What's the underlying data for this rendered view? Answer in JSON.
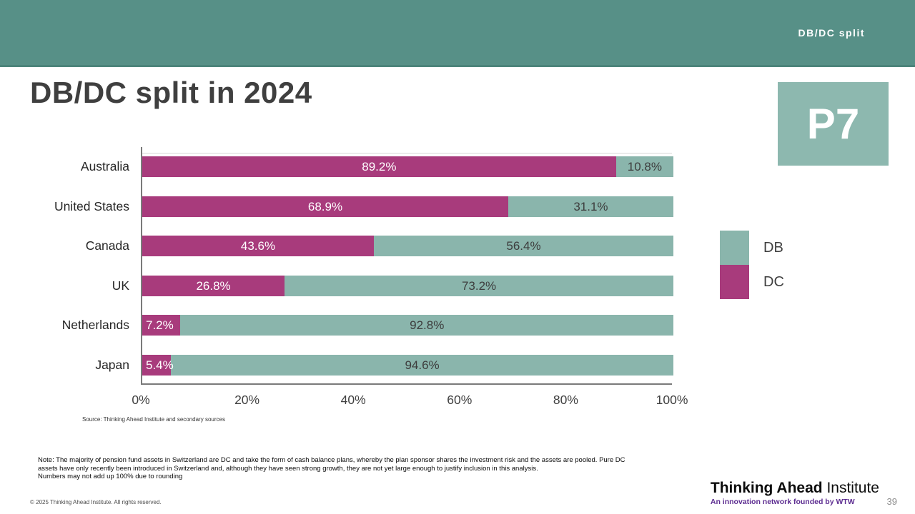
{
  "header": {
    "label": "DB/DC split"
  },
  "page": {
    "title": "DB/DC split in 2024",
    "badge": "P7",
    "page_number": "39"
  },
  "chart_data": {
    "type": "bar",
    "orientation": "horizontal",
    "stacked": true,
    "title": "DB/DC split in 2024",
    "categories": [
      "Australia",
      "United States",
      "Canada",
      "UK",
      "Netherlands",
      "Japan"
    ],
    "series": [
      {
        "name": "DC",
        "color": "#a83b7c",
        "label_color": "#ffffff",
        "values": [
          89.2,
          68.9,
          43.6,
          26.8,
          7.2,
          5.4
        ]
      },
      {
        "name": "DB",
        "color": "#8ab5ac",
        "label_color": "#3d3d3d",
        "values": [
          10.8,
          31.1,
          56.4,
          73.2,
          92.8,
          94.6
        ]
      }
    ],
    "x_ticks": [
      "0%",
      "20%",
      "40%",
      "60%",
      "80%",
      "100%"
    ],
    "xlim": [
      0,
      100
    ],
    "grid": false,
    "legend_position": "right",
    "legend": [
      {
        "label": "DB",
        "color": "#8ab5ac"
      },
      {
        "label": "DC",
        "color": "#a83b7c"
      }
    ],
    "source": "Source: Thinking Ahead Institute and secondary sources"
  },
  "note": {
    "lines": [
      "Note: The majority of pension fund assets in Switzerland are DC and take the form of cash balance plans, whereby the plan sponsor shares the investment risk and the assets are pooled. Pure DC",
      "assets have only recently been introduced in Switzerland and, although they have seen strong growth, they are not yet large enough to justify inclusion in this analysis.",
      "Numbers may not add up 100% due to rounding"
    ]
  },
  "footer": {
    "copyright": "© 2025 Thinking Ahead Institute. All rights reserved.",
    "logo_bold": "Thinking Ahead",
    "logo_regular": " Institute",
    "tagline": "An innovation network founded by WTW"
  }
}
